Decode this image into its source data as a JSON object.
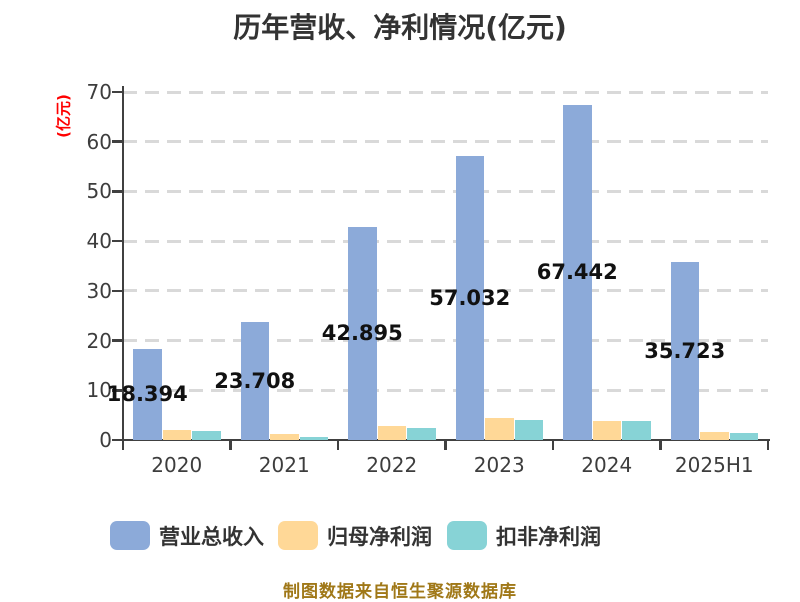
{
  "title": "历年营收、净利情况(亿元)",
  "y_axis_title": "(亿元)",
  "footer_note": "制图数据来自恒生聚源数据库",
  "colors": {
    "revenue_bar": "#8caad9",
    "net_profit_bar": "#ffd897",
    "deducted_profit_bar": "#87d3d6",
    "axis": "#404040",
    "gridline": "#d9d9d9",
    "y_axis_title_red": "#ff0000",
    "footer_gold": "#a07818",
    "title_text": "#333333",
    "background": "#ffffff"
  },
  "chart_data": {
    "type": "bar",
    "title": "历年营收、净利情况(亿元)",
    "ylabel": "(亿元)",
    "xlabel": "",
    "ylim": [
      0,
      70
    ],
    "yticks": [
      0,
      10,
      20,
      30,
      40,
      50,
      60,
      70
    ],
    "grid": "horizontal-dashed",
    "legend_position": "bottom",
    "categories": [
      "2020",
      "2021",
      "2022",
      "2023",
      "2024",
      "2025H1"
    ],
    "series": [
      {
        "name": "营业总收入",
        "values": [
          18.394,
          23.708,
          42.895,
          57.032,
          67.442,
          35.723
        ],
        "data_labels": [
          "18.394",
          "23.708",
          "42.895",
          "57.032",
          "67.442",
          "35.723"
        ],
        "values_estimated": false
      },
      {
        "name": "归母净利润",
        "values": [
          2.05,
          1.2,
          2.75,
          4.35,
          3.9,
          1.55
        ],
        "data_labels": [],
        "values_estimated": true
      },
      {
        "name": "扣非净利润",
        "values": [
          1.8,
          0.55,
          2.4,
          4.05,
          3.75,
          1.35
        ],
        "data_labels": [],
        "values_estimated": true
      }
    ]
  },
  "legend": {
    "items": [
      {
        "label": "营业总收入"
      },
      {
        "label": "归母净利润"
      },
      {
        "label": "扣非净利润"
      }
    ]
  }
}
